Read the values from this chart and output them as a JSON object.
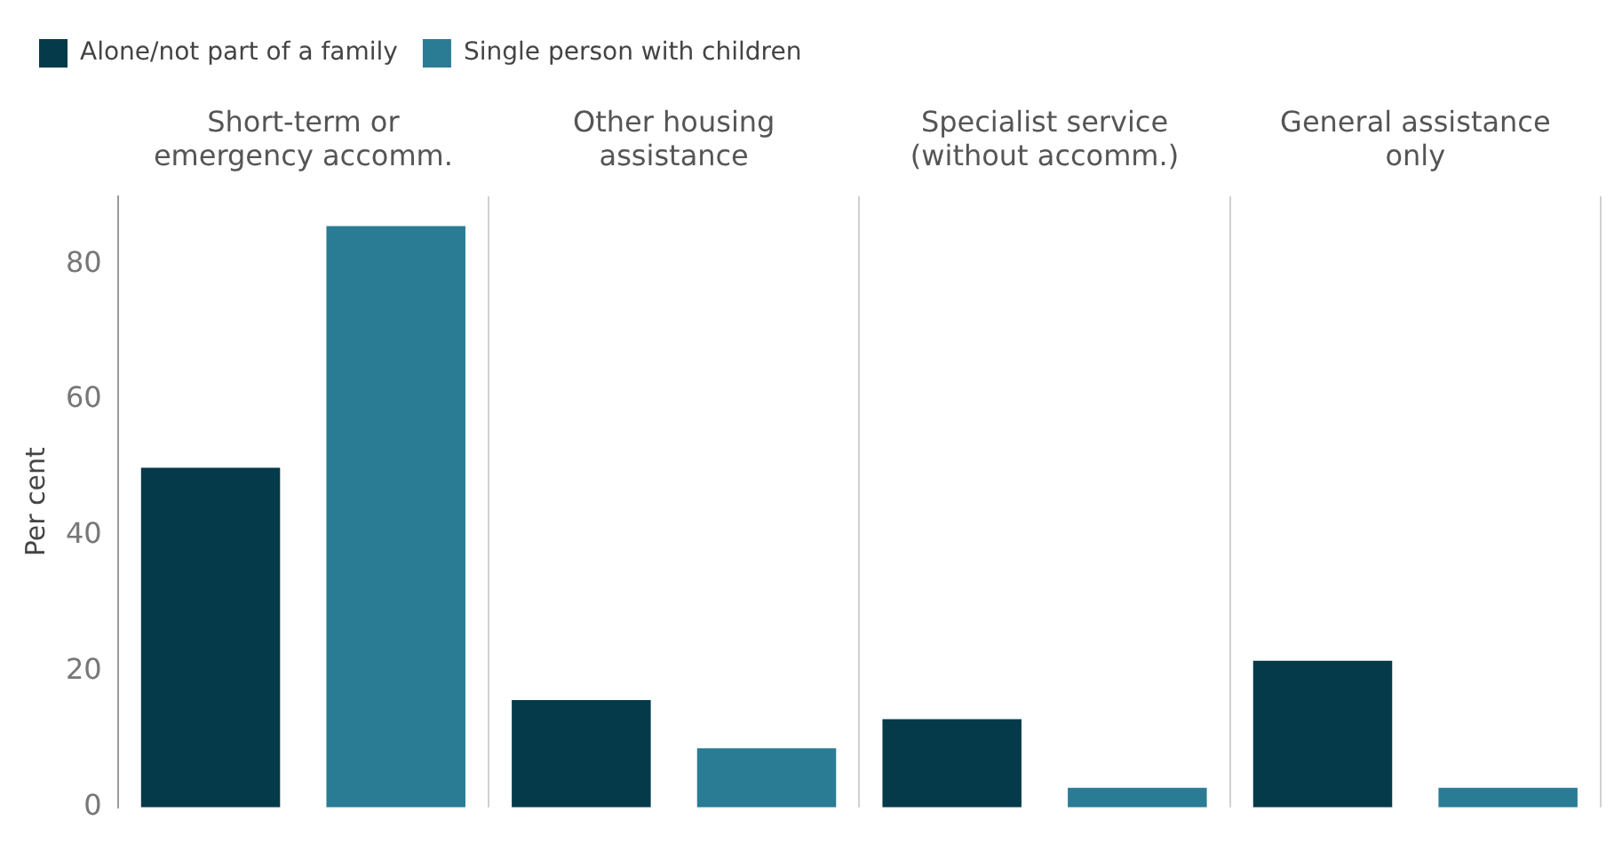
{
  "chart_data": {
    "type": "bar",
    "categories": [
      "Short-term or emergency accomm.",
      "Other housing assistance",
      "Specialist service (without accomm.)",
      "General assistance only"
    ],
    "series": [
      {
        "name": "Alone/not part of a family",
        "color": "#053a4a",
        "values": [
          50,
          15.8,
          13,
          21.6
        ]
      },
      {
        "name": "Single person with children",
        "color": "#2a7b94",
        "values": [
          85.6,
          8.7,
          2.9,
          2.9
        ]
      }
    ],
    "ylabel": "Per cent",
    "ylim": [
      0,
      90
    ],
    "yticks": [
      0,
      20,
      40,
      60,
      80
    ],
    "grid": "x",
    "legend": "top left"
  }
}
